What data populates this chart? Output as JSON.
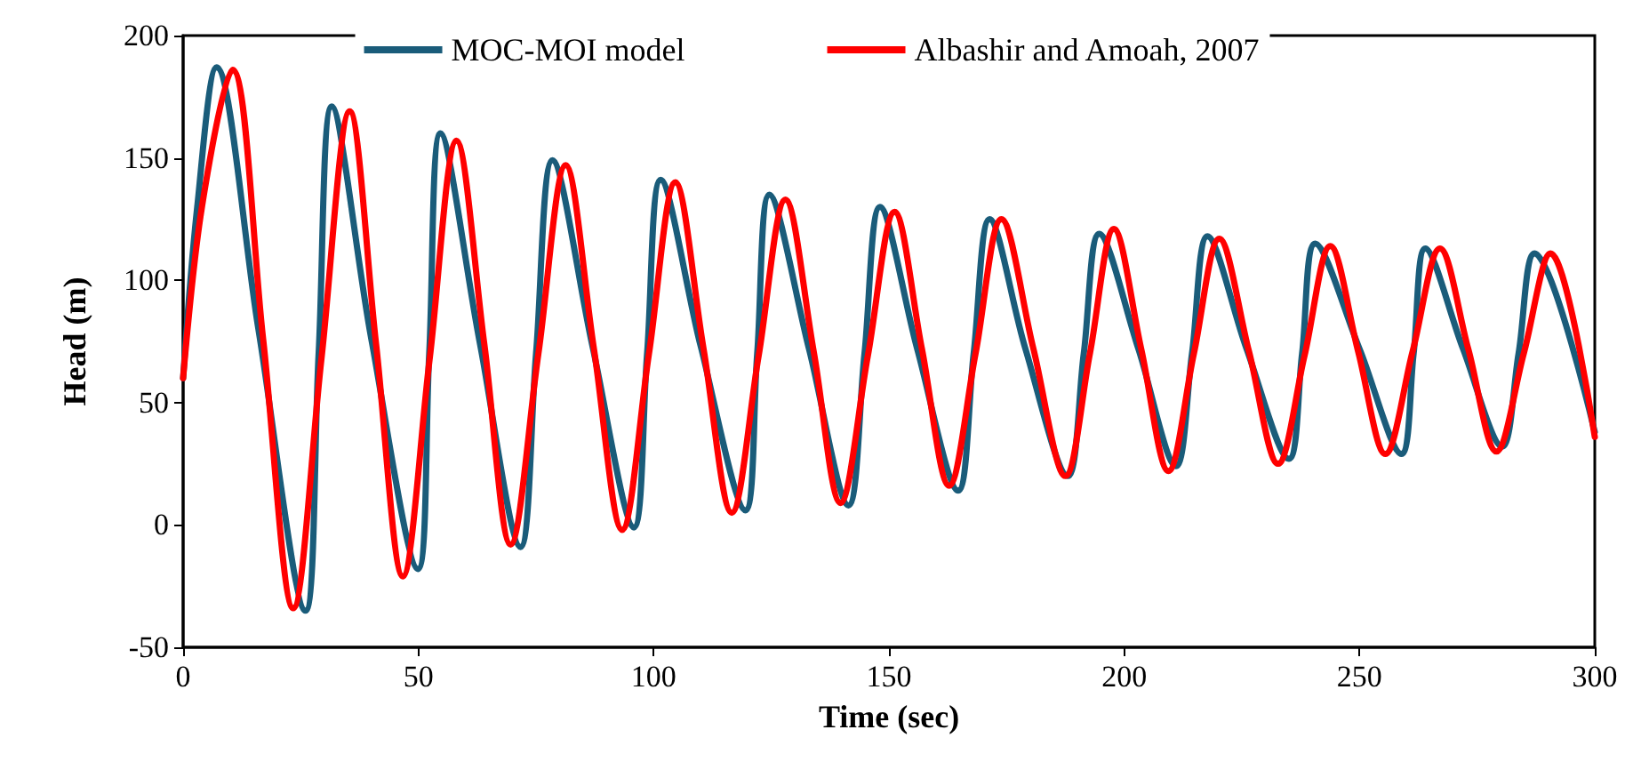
{
  "chart_data": {
    "type": "line",
    "xlabel": "Time (sec)",
    "ylabel": "Head (m)",
    "xlim": [
      0,
      300
    ],
    "xticks": [
      0,
      50,
      100,
      150,
      200,
      250,
      300
    ],
    "ylim": [
      -50,
      200
    ],
    "yticks": [
      -50,
      0,
      50,
      100,
      150,
      200
    ],
    "grid": false,
    "legend": "top",
    "marker": "none",
    "line_style": "solid",
    "series": [
      {
        "name": "MOC-MOI model",
        "color": "#1a5c7a",
        "x": [
          0,
          3,
          7.1,
          16,
          26,
          28.8,
          31.6,
          40,
          49.9,
          52.3,
          54.7,
          63,
          71.7,
          75,
          78.5,
          87,
          95.8,
          98.6,
          101.5,
          110,
          119.5,
          122,
          124.6,
          133,
          141.4,
          144.8,
          148.1,
          156,
          164.7,
          168,
          171.4,
          179,
          188,
          191.4,
          194.7,
          203,
          211,
          214.4,
          217.7,
          226,
          235,
          237.8,
          240.6,
          250,
          258.9,
          261.5,
          264,
          272,
          280.3,
          283.8,
          287.2,
          300
        ],
        "values": [
          60,
          130,
          187,
          80,
          -35,
          70,
          171,
          76,
          -18,
          70,
          160,
          75,
          -9,
          70,
          149,
          73,
          -1,
          70,
          141,
          73,
          6,
          70,
          135,
          72,
          8,
          70,
          130,
          72,
          14,
          70,
          125,
          72,
          20,
          70,
          119,
          72,
          24,
          70,
          118,
          72,
          27,
          70,
          115,
          72,
          29,
          70,
          113,
          72,
          32,
          70,
          111,
          38
        ]
      },
      {
        "name": "Albashir and Amoah, 2007",
        "color": "#ff0000",
        "x": [
          0,
          4,
          10.5,
          17,
          23.4,
          29.4,
          35.4,
          41,
          46.7,
          52.4,
          58.1,
          64,
          69.6,
          75.5,
          81.3,
          87.3,
          93.3,
          99,
          104.6,
          110.6,
          116.6,
          122.3,
          128,
          134,
          139.7,
          145.5,
          151.2,
          157,
          162.8,
          168.4,
          173.9,
          180.7,
          187.5,
          192.7,
          197.8,
          203.6,
          209.4,
          214.8,
          220.2,
          226.5,
          232.7,
          238.3,
          243.8,
          249.7,
          255.5,
          261.3,
          267.1,
          273.1,
          279.1,
          284.9,
          290.6,
          300
        ],
        "values": [
          60,
          130,
          186,
          76,
          -34,
          68,
          169,
          74,
          -21,
          68,
          157,
          74,
          -8,
          70,
          147,
          72,
          -2,
          70,
          140,
          72,
          5,
          69,
          133,
          71,
          9,
          69,
          128,
          72,
          16,
          70,
          125,
          72,
          20,
          70,
          121,
          72,
          22,
          70,
          117,
          71,
          25,
          69,
          114,
          71,
          29,
          71,
          113,
          72,
          30,
          70,
          111,
          36
        ]
      }
    ]
  }
}
